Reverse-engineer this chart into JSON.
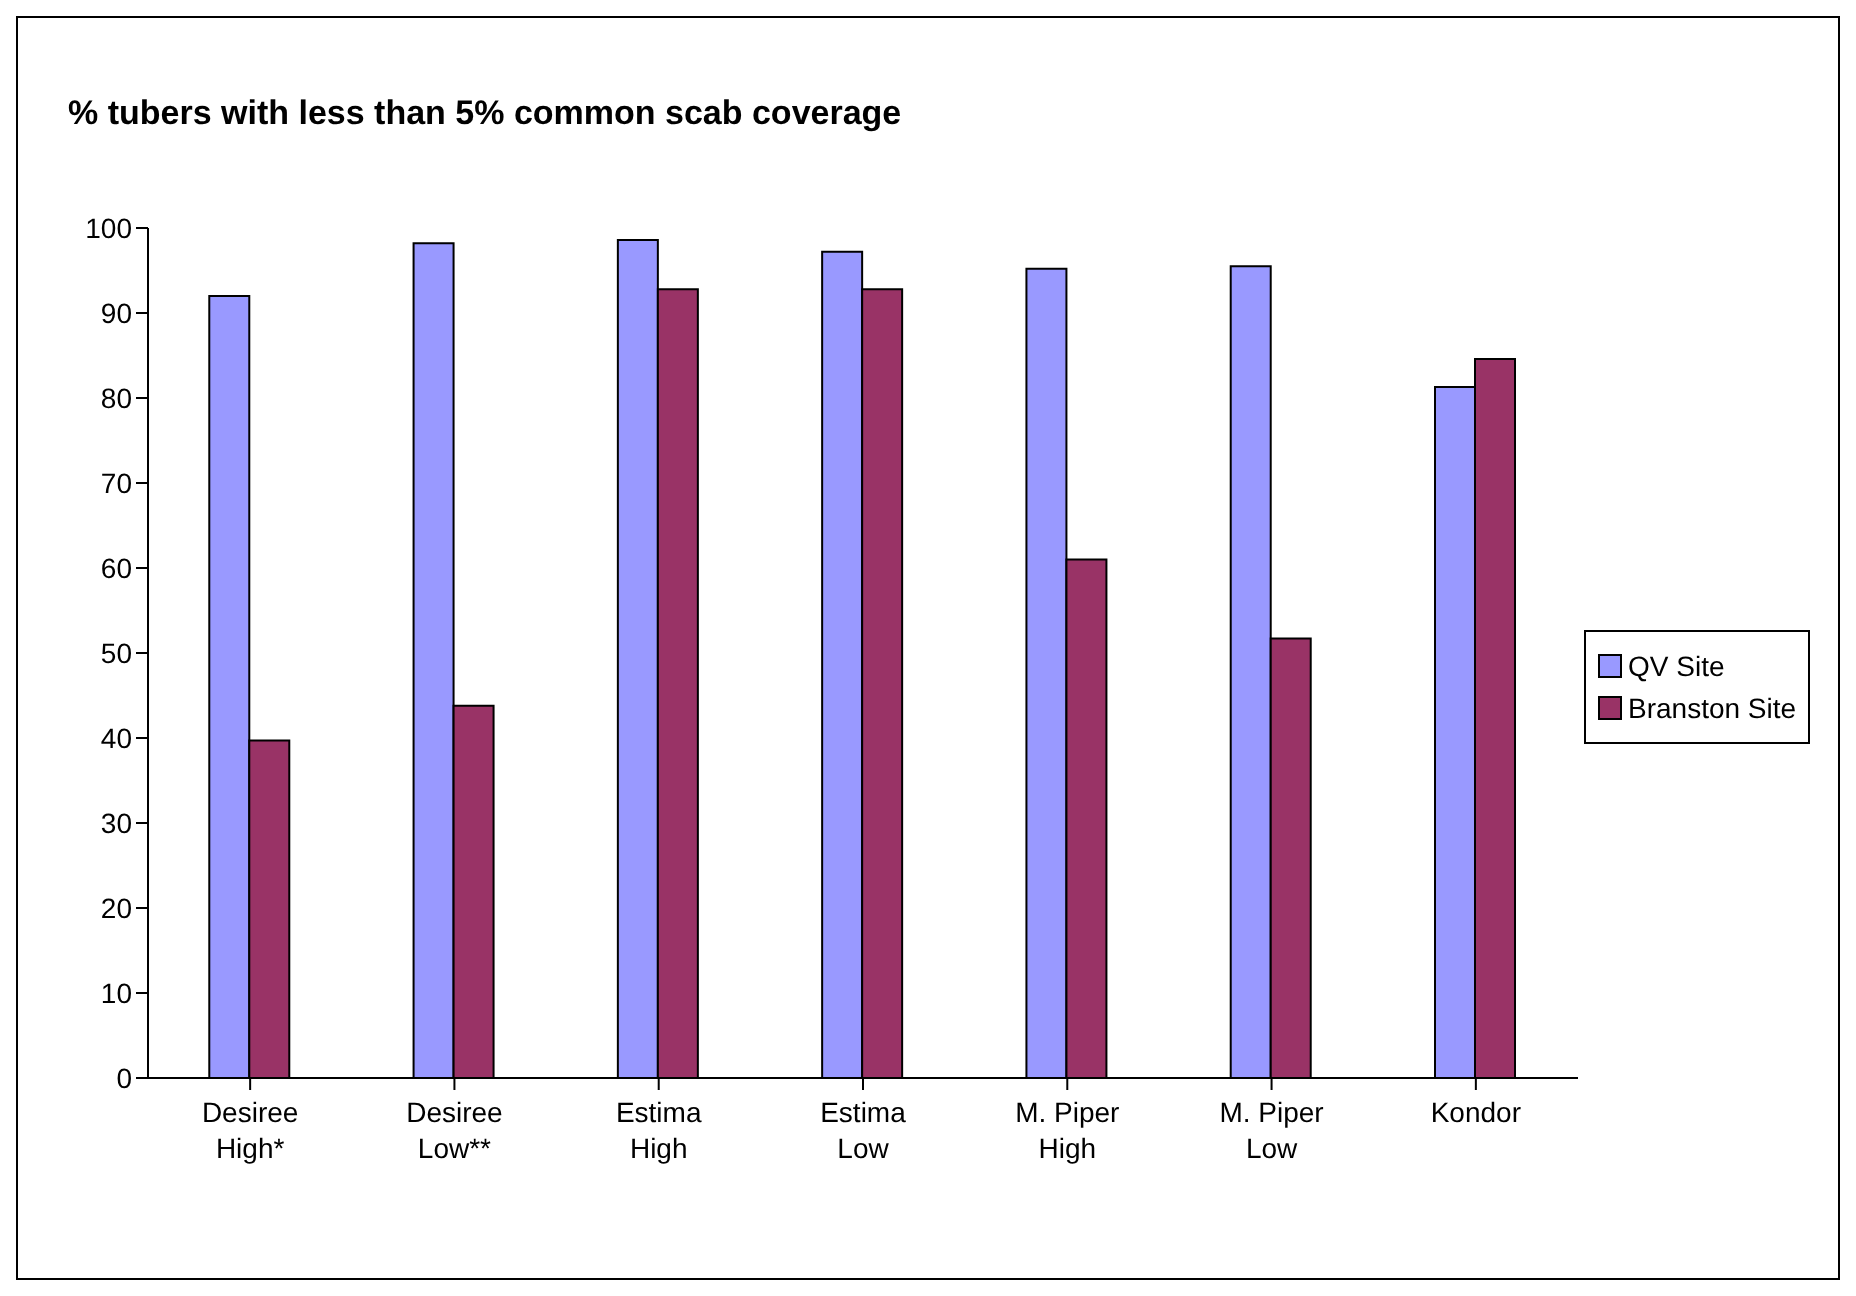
{
  "chart_data": {
    "type": "bar",
    "title": "% tubers with less than 5% common scab coverage",
    "categories": [
      "Desiree High*",
      "Desiree Low**",
      "Estima High",
      "Estima Low",
      "M. Piper High",
      "M. Piper Low",
      "Kondor"
    ],
    "series": [
      {
        "name": "QV Site",
        "color": "#9999ff",
        "values": [
          92,
          98.2,
          98.6,
          97.2,
          95.2,
          95.5,
          81.3
        ]
      },
      {
        "name": "Branston Site",
        "color": "#993366",
        "values": [
          39.7,
          43.8,
          92.8,
          92.8,
          61,
          51.7,
          84.6
        ]
      }
    ],
    "ylim": [
      0,
      100
    ],
    "yticks": [
      0,
      10,
      20,
      30,
      40,
      50,
      60,
      70,
      80,
      90,
      100
    ],
    "grid": false,
    "legend": "right"
  }
}
